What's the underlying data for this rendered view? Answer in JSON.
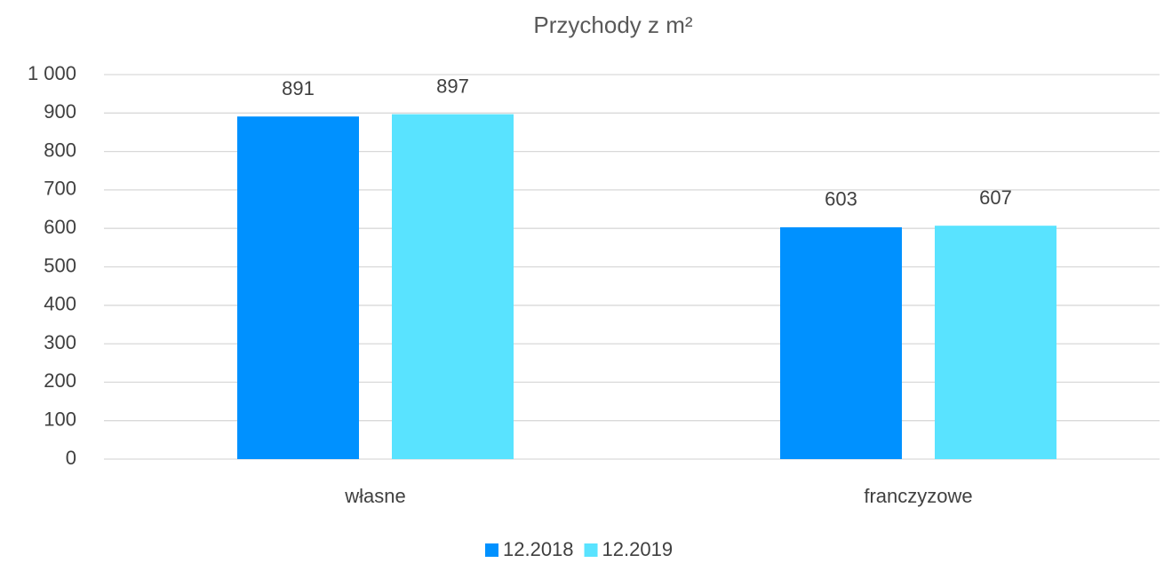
{
  "chart_data": {
    "type": "bar",
    "title": "Przychody z m²",
    "categories": [
      "własne",
      "franczyzowe"
    ],
    "series": [
      {
        "name": "12.2018",
        "color": "#0091ff",
        "values": [
          891,
          603
        ]
      },
      {
        "name": "12.2019",
        "color": "#59e3ff",
        "values": [
          897,
          607
        ]
      }
    ],
    "ylim": [
      0,
      1000
    ],
    "yticks": [
      0,
      100,
      200,
      300,
      400,
      500,
      600,
      700,
      800,
      900,
      {
        "value": 1000,
        "label": "1 000"
      }
    ],
    "grid": true,
    "legend": "bottom"
  }
}
